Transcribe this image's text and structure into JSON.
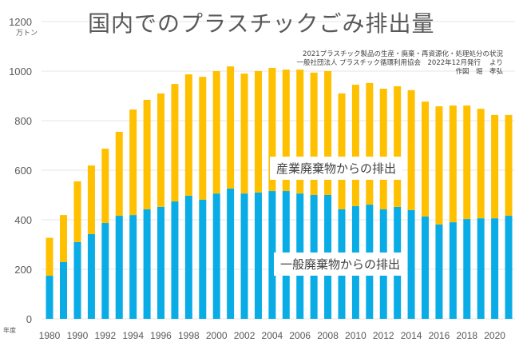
{
  "title": "国内でのプラスチックごみ排出量",
  "unit_label": "万トン",
  "year_axis_label": "年度",
  "source": {
    "line1": "2021プラスチック製品の生産・廃棄・再資源化・処理処分の状況",
    "line2": "一般社団法人 プラスチック循環利用協会　2022年12月発行　 より",
    "line3": "作図　堀　孝弘"
  },
  "annotations": {
    "industrial": "産業廃棄物からの排出",
    "general": "一般廃棄物からの排出"
  },
  "chart_data": {
    "type": "bar",
    "stacked": true,
    "title": "国内でのプラスチックごみ排出量",
    "xlabel": "年度",
    "ylabel": "万トン",
    "ylim": [
      0,
      1200
    ],
    "yticks": [
      0,
      200,
      400,
      600,
      800,
      1000,
      1200
    ],
    "grid": true,
    "legend": "inline annotations",
    "categories": [
      "1980",
      "1985",
      "1990",
      "1991",
      "1992",
      "1993",
      "1994",
      "1995",
      "1996",
      "1997",
      "1998",
      "1999",
      "2000",
      "2001",
      "2002",
      "2003",
      "2004",
      "2005",
      "2006",
      "2007",
      "2008",
      "2009",
      "2010",
      "2011",
      "2012",
      "2013",
      "2014",
      "2015",
      "2016",
      "2017",
      "2018",
      "2019",
      "2020",
      "2021"
    ],
    "xtick_labels": [
      "1980",
      "",
      "1990",
      "",
      "1992",
      "",
      "1994",
      "",
      "1996",
      "",
      "1998",
      "",
      "2000",
      "",
      "2002",
      "",
      "2004",
      "",
      "2006",
      "",
      "2008",
      "",
      "2010",
      "",
      "2012",
      "",
      "2014",
      "",
      "2016",
      "",
      "2018",
      "",
      "2020",
      ""
    ],
    "series": [
      {
        "name": "一般廃棄物からの排出",
        "color": "#0AACE6",
        "values": [
          174,
          229,
          310,
          342,
          387,
          416,
          419,
          442,
          452,
          474,
          497,
          481,
          506,
          526,
          506,
          510,
          516,
          516,
          506,
          500,
          500,
          442,
          455,
          461,
          442,
          452,
          439,
          413,
          381,
          390,
          403,
          406,
          406,
          416
        ]
      },
      {
        "name": "産業廃棄物からの排出",
        "color": "#FFC000",
        "values": [
          153,
          190,
          245,
          277,
          300,
          339,
          426,
          442,
          458,
          474,
          490,
          496,
          494,
          493,
          484,
          490,
          497,
          490,
          500,
          494,
          500,
          468,
          490,
          491,
          487,
          487,
          484,
          464,
          477,
          471,
          458,
          442,
          417,
          407
        ]
      }
    ]
  }
}
